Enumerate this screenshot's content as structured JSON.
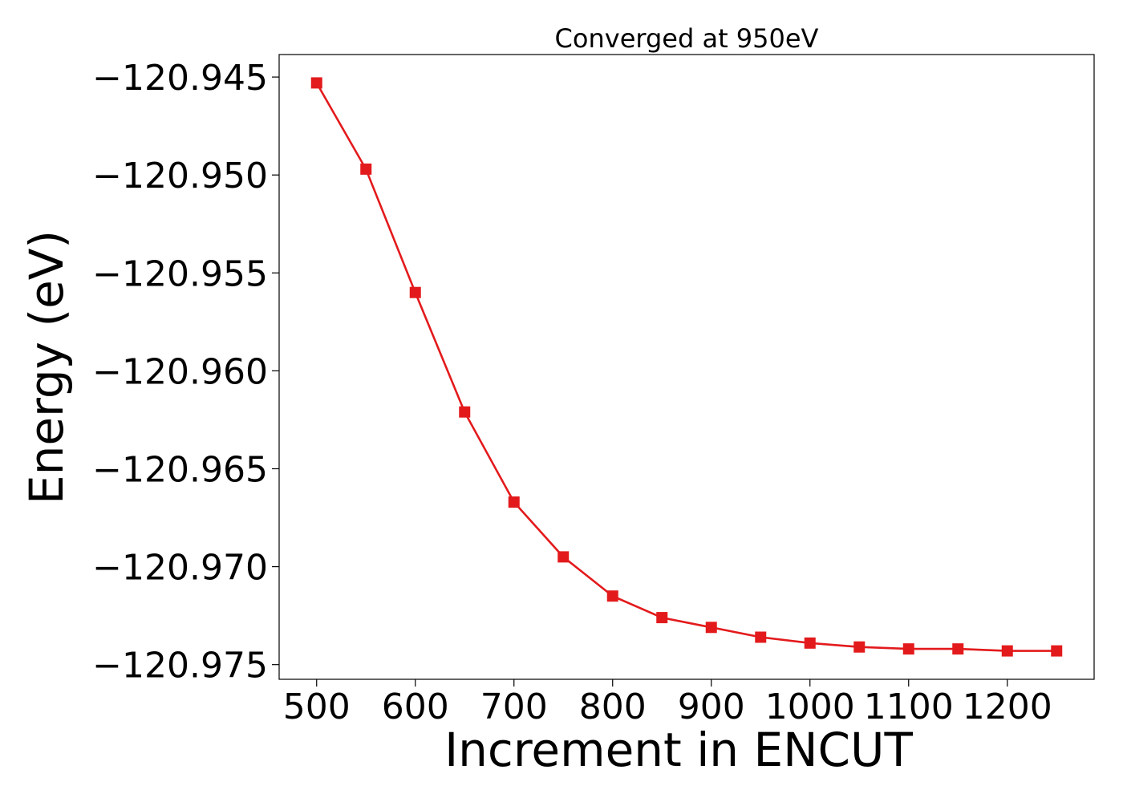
{
  "chart_data": {
    "type": "line",
    "title": "Converged at 950eV",
    "xlabel": "Increment in ENCUT",
    "ylabel": "Energy (eV)",
    "x": [
      500,
      550,
      600,
      650,
      700,
      750,
      800,
      850,
      900,
      950,
      1000,
      1050,
      1100,
      1150,
      1200,
      1250
    ],
    "series": [
      {
        "name": "Energy",
        "color": "#e31a1c",
        "marker": "square",
        "values": [
          -120.9453,
          -120.9497,
          -120.956,
          -120.9621,
          -120.9667,
          -120.9695,
          -120.9715,
          -120.9726,
          -120.9731,
          -120.9736,
          -120.9739,
          -120.9741,
          -120.9742,
          -120.9742,
          -120.9743,
          -120.9743
        ]
      }
    ],
    "xticks": [
      500,
      600,
      700,
      800,
      900,
      1000,
      1100,
      1200
    ],
    "xtick_labels": [
      "500",
      "600",
      "700",
      "800",
      "900",
      "1000",
      "1100",
      "1200"
    ],
    "yticks": [
      -120.945,
      -120.95,
      -120.955,
      -120.96,
      -120.965,
      -120.97,
      -120.975
    ],
    "ytick_labels": [
      "−120.945",
      "−120.950",
      "−120.955",
      "−120.960",
      "−120.965",
      "−120.970",
      "−120.975"
    ],
    "xlim": [
      462,
      1288
    ],
    "ylim": [
      -120.97575,
      -120.94385
    ],
    "grid": false,
    "legend": "none"
  }
}
